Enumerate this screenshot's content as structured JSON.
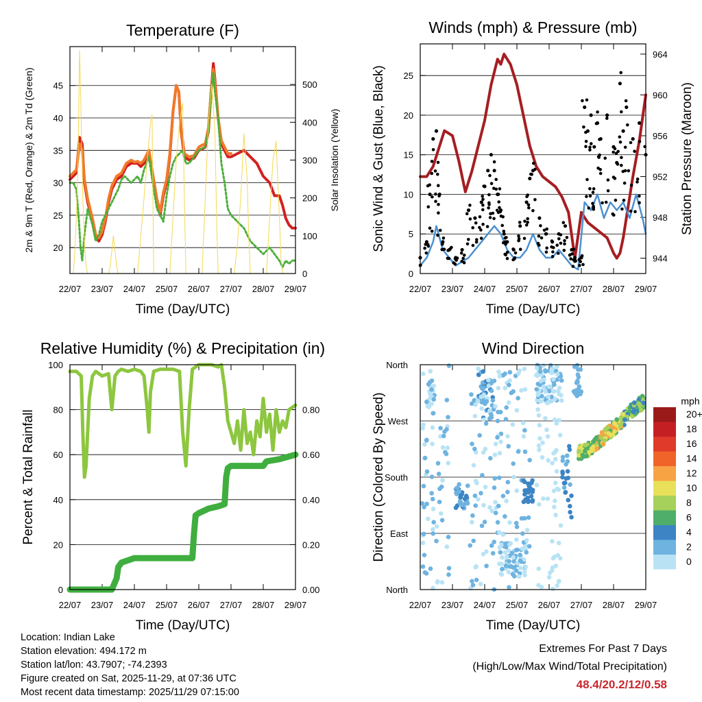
{
  "chart_data": [
    {
      "type": "line",
      "title": "Temperature (F)",
      "xlabel": "Time (Day/UTC)",
      "ylabel": "2m & 9m T (Red, Orange) & 2m Td (Green)",
      "ylabel_right": "Solar Insolation (Yellow)",
      "x_ticks": [
        "22/07",
        "23/07",
        "24/07",
        "25/07",
        "26/07",
        "27/07",
        "28/07",
        "29/07"
      ],
      "xlim": [
        0,
        7
      ],
      "ylim": [
        16,
        51
      ],
      "y_ticks": [
        "20",
        "25",
        "30",
        "35",
        "40",
        "45"
      ],
      "y2lim": [
        0,
        600
      ],
      "y2_ticks": [
        "0",
        "100",
        "200",
        "300",
        "400",
        "500"
      ],
      "series": [
        {
          "name": "2m T",
          "color": "#d42020",
          "axis": "left",
          "x": [
            0,
            0.1,
            0.2,
            0.3,
            0.38,
            0.45,
            0.55,
            0.7,
            0.8,
            0.9,
            1.0,
            1.1,
            1.2,
            1.3,
            1.45,
            1.6,
            1.75,
            1.9,
            2.0,
            2.1,
            2.2,
            2.3,
            2.45,
            2.6,
            2.7,
            2.8,
            2.9,
            3.0,
            3.1,
            3.2,
            3.3,
            3.38,
            3.45,
            3.55,
            3.7,
            3.85,
            4.0,
            4.1,
            4.2,
            4.3,
            4.38,
            4.45,
            4.5,
            4.6,
            4.7,
            4.8,
            4.9,
            5.0,
            5.2,
            5.4,
            5.6,
            5.8,
            6.0,
            6.2,
            6.35,
            6.5,
            6.6,
            6.7,
            6.8,
            6.9,
            7.0
          ],
          "values": [
            30.5,
            31,
            31.5,
            37,
            36,
            30,
            27,
            24,
            21.5,
            21,
            22,
            24,
            27,
            29,
            30.5,
            31,
            32.5,
            33,
            33,
            33,
            32.5,
            33,
            35,
            30,
            27,
            25,
            28,
            30,
            34,
            41,
            45,
            44,
            38,
            34,
            33.5,
            33.8,
            35,
            35.2,
            35.5,
            38,
            44,
            48.4,
            46,
            40,
            36,
            35,
            34,
            34,
            34.5,
            35,
            34,
            33,
            31,
            30,
            28,
            28,
            26.5,
            24.5,
            23.5,
            23,
            23
          ]
        },
        {
          "name": "9m T",
          "color": "#f07a2a",
          "axis": "left",
          "x": [
            0,
            0.1,
            0.2,
            0.3,
            0.38,
            0.45,
            0.55,
            0.7,
            0.8,
            0.9,
            1.0,
            1.1,
            1.2,
            1.3,
            1.45,
            1.6,
            1.75,
            1.9,
            2.0,
            2.1,
            2.2,
            2.3,
            2.45,
            2.6,
            2.7,
            2.8,
            2.9,
            3.0,
            3.1,
            3.2,
            3.3,
            3.38,
            3.45,
            3.55,
            3.7,
            3.85,
            4.0,
            4.1,
            4.2,
            4.3,
            4.38,
            4.45,
            4.5,
            4.6,
            4.7,
            4.8,
            4.9,
            5.0
          ],
          "values": [
            31,
            31.5,
            32,
            36,
            35,
            30.5,
            27.5,
            24.5,
            22,
            21.5,
            22.5,
            24.5,
            27.5,
            29.5,
            31,
            31.5,
            33,
            33.5,
            33.2,
            33.3,
            33,
            33.5,
            35,
            30.5,
            27.5,
            25.5,
            28.5,
            30.5,
            34.5,
            41,
            45,
            44,
            38.5,
            34.5,
            34,
            34.2,
            35.5,
            35.8,
            36,
            38.5,
            44,
            47.5,
            45.5,
            40,
            36.5,
            35.5,
            34.5,
            34.5
          ]
        },
        {
          "name": "2m Td",
          "color": "#4caf3a",
          "axis": "left",
          "x": [
            0,
            0.1,
            0.2,
            0.28,
            0.33,
            0.38,
            0.45,
            0.55,
            0.7,
            0.8,
            0.9,
            1.0,
            1.1,
            1.2,
            1.3,
            1.4,
            1.5,
            1.6,
            1.7,
            1.8,
            1.9,
            2.0,
            2.1,
            2.2,
            2.3,
            2.45,
            2.6,
            2.7,
            2.8,
            2.9,
            3.0,
            3.1,
            3.2,
            3.3,
            3.4,
            3.5,
            3.6,
            3.7,
            3.85,
            4.0,
            4.1,
            4.2,
            4.3,
            4.38,
            4.45,
            4.5,
            4.6,
            4.7,
            4.8,
            4.9,
            5.0,
            5.2,
            5.4,
            5.6,
            5.8,
            6.0,
            6.2,
            6.35,
            6.5,
            6.6,
            6.7,
            6.8,
            6.9,
            7.0
          ],
          "values": [
            30,
            30,
            29,
            24,
            20,
            18,
            22,
            26,
            23.5,
            21,
            22,
            24,
            25,
            26,
            27,
            28,
            29,
            30.5,
            31,
            30.5,
            30,
            30.5,
            31,
            30,
            32,
            34,
            29,
            26,
            25,
            24,
            28,
            31,
            33,
            34,
            34.5,
            35,
            33,
            33,
            34,
            35,
            35.3,
            35.5,
            38,
            44,
            47,
            44,
            40,
            33,
            30,
            26,
            25,
            24,
            23,
            21,
            20,
            19,
            20,
            19,
            18,
            17,
            18,
            17.5,
            18,
            18
          ]
        },
        {
          "name": "Solar Insolation",
          "color": "#f5d850",
          "axis": "right",
          "x": [
            0.1,
            0.15,
            0.2,
            0.25,
            0.3,
            0.35,
            0.4,
            0.45,
            0.5,
            0.55,
            0.6,
            1.2,
            1.25,
            1.3,
            1.35,
            1.4,
            1.45,
            1.5,
            2.1,
            2.2,
            2.3,
            2.4,
            2.5,
            2.55,
            2.6,
            3.1,
            3.2,
            3.3,
            3.4,
            3.5,
            3.55,
            3.6,
            4.1,
            4.2,
            4.3,
            4.4,
            4.5,
            4.55,
            4.6,
            5.1,
            5.2,
            5.3,
            5.4,
            5.5,
            5.55,
            5.6,
            6.1,
            6.2,
            6.3,
            6.4,
            6.5,
            6.55,
            6.6
          ],
          "values": [
            0,
            50,
            150,
            300,
            590,
            400,
            200,
            80,
            20,
            0,
            0,
            0,
            20,
            60,
            100,
            60,
            20,
            0,
            0,
            100,
            200,
            300,
            400,
            420,
            0,
            0,
            150,
            300,
            400,
            450,
            200,
            0,
            0,
            200,
            400,
            500,
            380,
            150,
            0,
            0,
            80,
            200,
            370,
            250,
            100,
            0,
            0,
            150,
            300,
            350,
            150,
            40,
            0
          ]
        }
      ]
    },
    {
      "type": "line",
      "title": "Winds (mph) & Pressure (mb)",
      "xlabel": "Time (Day/UTC)",
      "ylabel": "Sonic Wind & Gust (Blue, Black)",
      "ylabel_right": "Station Pressure (Maroon)",
      "x_ticks": [
        "22/07",
        "23/07",
        "24/07",
        "25/07",
        "26/07",
        "27/07",
        "28/07",
        "29/07"
      ],
      "xlim": [
        0,
        7
      ],
      "ylim": [
        0,
        29
      ],
      "y_ticks": [
        "0",
        "5",
        "10",
        "15",
        "20",
        "25"
      ],
      "y2lim": [
        942.5,
        965
      ],
      "y2_ticks": [
        "944",
        "948",
        "952",
        "956",
        "960",
        "964"
      ],
      "series": [
        {
          "name": "Pressure",
          "color": "#a51e22",
          "axis": "right",
          "x": [
            0,
            0.2,
            0.4,
            0.6,
            0.75,
            1.0,
            1.2,
            1.4,
            1.6,
            1.8,
            2.0,
            2.2,
            2.4,
            2.5,
            2.6,
            2.8,
            3.0,
            3.2,
            3.4,
            3.6,
            3.8,
            4.0,
            4.2,
            4.4,
            4.6,
            4.8,
            5.0,
            5.2,
            5.4,
            5.6,
            5.8,
            6.0,
            6.1,
            6.2,
            6.3,
            6.4,
            6.6,
            6.8,
            7.0
          ],
          "values": [
            952,
            952,
            953,
            955,
            956.5,
            956,
            953.5,
            950.5,
            952.5,
            955,
            957.5,
            961,
            963.5,
            963,
            964,
            963,
            961,
            958,
            955,
            953,
            952,
            951.5,
            951,
            950,
            948.5,
            944,
            948.5,
            947.5,
            947,
            946.5,
            946,
            944.5,
            944,
            944.5,
            946,
            948,
            952,
            955.5,
            960
          ]
        },
        {
          "name": "Sonic Wind",
          "color": "#4a90d0",
          "axis": "left",
          "x": [
            0,
            0.2,
            0.4,
            0.5,
            0.7,
            0.9,
            1.1,
            1.3,
            1.5,
            1.7,
            1.9,
            2.1,
            2.3,
            2.5,
            2.7,
            2.9,
            3.1,
            3.3,
            3.5,
            3.7,
            3.9,
            4.1,
            4.3,
            4.5,
            4.7,
            4.9,
            5.1,
            5.3,
            5.5,
            5.7,
            5.9,
            6.1,
            6.3,
            6.5,
            6.7,
            6.9,
            7.0
          ],
          "values": [
            1,
            2,
            4,
            6,
            3,
            2,
            1,
            1.5,
            2,
            3,
            4,
            5,
            6,
            5,
            3,
            2,
            2,
            3,
            5,
            3,
            2,
            2,
            3,
            2,
            1,
            0.5,
            9,
            8,
            10,
            7,
            9,
            8,
            9,
            7,
            10,
            7,
            5
          ]
        },
        {
          "name": "Gust",
          "color": "#000000",
          "axis": "left",
          "x": [
            0,
            0.2,
            0.3,
            0.4,
            0.5,
            0.6,
            0.7,
            0.9,
            1.1,
            1.3,
            1.5,
            1.7,
            1.9,
            2.0,
            2.1,
            2.2,
            2.3,
            2.4,
            2.5,
            2.6,
            2.7,
            2.9,
            3.1,
            3.3,
            3.4,
            3.5,
            3.7,
            3.9,
            4.1,
            4.3,
            4.5,
            4.7,
            4.8,
            5.0,
            5.1,
            5.2,
            5.3,
            5.4,
            5.5,
            5.6,
            5.8,
            6.0,
            6.1,
            6.2,
            6.3,
            6.4,
            6.6,
            6.8,
            7.0
          ],
          "values": [
            2,
            4,
            10,
            17,
            18,
            10,
            4,
            3,
            2,
            3,
            8,
            7,
            9,
            11,
            13,
            15,
            13,
            10,
            8,
            5,
            4,
            3,
            6,
            9,
            12,
            13,
            7,
            5,
            4,
            5,
            6,
            3,
            2,
            2,
            21,
            18,
            20,
            16,
            19,
            17,
            20,
            16,
            14,
            24,
            18,
            21,
            17,
            19,
            15
          ]
        }
      ]
    },
    {
      "type": "line",
      "title": "Relative Humidity (%) & Precipitation (in)",
      "xlabel": "Time (Day/UTC)",
      "ylabel": "Percent & Total Rainfall",
      "x_ticks": [
        "22/07",
        "23/07",
        "24/07",
        "25/07",
        "26/07",
        "27/07",
        "28/07",
        "29/07"
      ],
      "xlim": [
        0,
        7
      ],
      "ylim": [
        0,
        100
      ],
      "y_ticks": [
        "0",
        "20",
        "40",
        "60",
        "80",
        "100"
      ],
      "y2lim": [
        0,
        1.0
      ],
      "y2_ticks": [
        "0.00",
        "0.20",
        "0.40",
        "0.60",
        "0.80"
      ],
      "series": [
        {
          "name": "Relative Humidity",
          "color": "#8dc63f",
          "axis": "left",
          "x": [
            0,
            0.2,
            0.35,
            0.4,
            0.45,
            0.5,
            0.6,
            0.7,
            0.8,
            0.9,
            1.0,
            1.2,
            1.3,
            1.4,
            1.5,
            1.6,
            1.8,
            2.0,
            2.2,
            2.3,
            2.4,
            2.45,
            2.5,
            2.6,
            2.8,
            3.0,
            3.2,
            3.4,
            3.5,
            3.6,
            3.7,
            3.8,
            4.0,
            4.2,
            4.4,
            4.6,
            4.7,
            4.8,
            4.9,
            5.0,
            5.1,
            5.2,
            5.3,
            5.4,
            5.5,
            5.6,
            5.7,
            5.8,
            5.9,
            6.0,
            6.1,
            6.2,
            6.3,
            6.4,
            6.5,
            6.6,
            6.7,
            6.8,
            7.0
          ],
          "values": [
            97,
            97,
            95,
            70,
            50,
            55,
            85,
            95,
            97,
            96,
            95,
            96,
            80,
            95,
            97,
            98,
            97,
            98,
            97,
            95,
            80,
            70,
            88,
            97,
            98,
            98,
            98,
            97,
            70,
            55,
            80,
            98,
            100,
            100,
            100,
            99,
            100,
            90,
            75,
            70,
            65,
            75,
            62,
            80,
            65,
            70,
            60,
            75,
            68,
            85,
            70,
            78,
            62,
            80,
            70,
            75,
            72,
            80,
            82
          ]
        },
        {
          "name": "Total Rainfall",
          "color": "#3fae3f",
          "axis": "right",
          "x": [
            0,
            1.0,
            1.3,
            1.45,
            1.5,
            1.6,
            1.8,
            2.0,
            2.5,
            3.0,
            3.5,
            3.8,
            3.85,
            3.9,
            4.0,
            4.3,
            4.6,
            4.8,
            4.85,
            4.9,
            5.0,
            5.5,
            6.0,
            6.1,
            6.5,
            7.0
          ],
          "values": [
            0,
            0,
            0,
            0.05,
            0.1,
            0.12,
            0.13,
            0.14,
            0.14,
            0.14,
            0.14,
            0.14,
            0.25,
            0.33,
            0.34,
            0.36,
            0.37,
            0.38,
            0.5,
            0.54,
            0.55,
            0.55,
            0.55,
            0.57,
            0.58,
            0.6
          ]
        }
      ]
    },
    {
      "type": "scatter",
      "title": "Wind Direction",
      "xlabel": "Time (Day/UTC)",
      "ylabel": "Direction (Colored By Speed)",
      "x_ticks": [
        "22/07",
        "23/07",
        "24/07",
        "25/07",
        "26/07",
        "27/07",
        "28/07",
        "29/07"
      ],
      "xlim": [
        0,
        7
      ],
      "ylim": [
        0,
        360
      ],
      "y_ticks": [
        "North",
        "East",
        "South",
        "West",
        "North"
      ],
      "legend_title": "mph",
      "legend_labels": [
        "20+",
        "18",
        "16",
        "14",
        "12",
        "10",
        "8",
        "6",
        "4",
        "2",
        "0"
      ],
      "legend_colors": [
        "#9a1a1a",
        "#c42024",
        "#e03a2a",
        "#f0642a",
        "#f7a343",
        "#e8e05a",
        "#a6d15a",
        "#4fae6a",
        "#3c84c4",
        "#6fb3e0",
        "#b9e3f5"
      ]
    }
  ],
  "info": {
    "location": "Location: Indian Lake",
    "elevation": "Station elevation: 494.172 m",
    "latlon": "Station lat/lon: 43.7907; -74.2393",
    "created": "Figure created on Sat, 2025-11-29, at 07:36 UTC",
    "recent": "Most recent data timestamp: 2025/11/29 07:15:00"
  },
  "extremes": {
    "title": "Extremes For Past 7 Days",
    "subtitle": "(High/Low/Max Wind/Total Precipitation)",
    "values": "48.4/20.2/12/0.58"
  }
}
